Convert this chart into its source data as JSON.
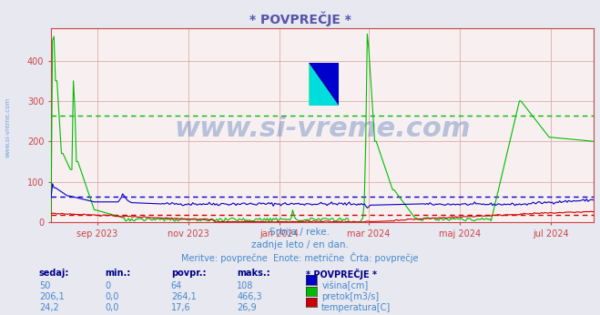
{
  "title": "* POVPREČJE *",
  "title_color": "#5555aa",
  "bg_color": "#e8e8f0",
  "plot_bg_color": "#f8f0f0",
  "grid_color": "#ddaaaa",
  "watermark_text": "www.si-vreme.com",
  "watermark_color": "#2255aa",
  "subtitle1": "Srbija / reke.",
  "subtitle2": "zadnje leto / en dan.",
  "subtitle3": "Meritve: povprečne  Enote: metrične  Črta: povprečje",
  "subtitle_color": "#4488cc",
  "xlabels": [
    "sep 2023",
    "nov 2023",
    "jan 2024",
    "mar 2024",
    "maj 2024",
    "jul 2024"
  ],
  "yticks": [
    0,
    100,
    200,
    300,
    400
  ],
  "ylim_max": 480,
  "n_points": 365,
  "visina_avg": 64,
  "pretok_avg": 264.1,
  "temperatura_avg": 17.6,
  "table_headers": [
    "sedaj:",
    "min.:",
    "povpr.:",
    "maks.:",
    "* POVPREČJE *"
  ],
  "table_header_color": "#000088",
  "table_rows": [
    [
      "50",
      "0",
      "64",
      "108",
      "višina[cm]",
      "#0000cc"
    ],
    [
      "206,1",
      "0,0",
      "264,1",
      "466,3",
      "pretok[m3/s]",
      "#00bb00"
    ],
    [
      "24,2",
      "0,0",
      "17,6",
      "26,9",
      "temperatura[C]",
      "#cc0000"
    ]
  ],
  "table_color": "#4488cc",
  "left_label": "www.si-vreme.com",
  "left_label_color": "#4488cc",
  "visina_color": "#0000cc",
  "pretok_color": "#00bb00",
  "temperatura_color": "#cc0000",
  "avg_line_dash": [
    4,
    3
  ],
  "logo_yellow": "#ffff00",
  "logo_cyan": "#00dddd",
  "logo_blue": "#0000cc"
}
